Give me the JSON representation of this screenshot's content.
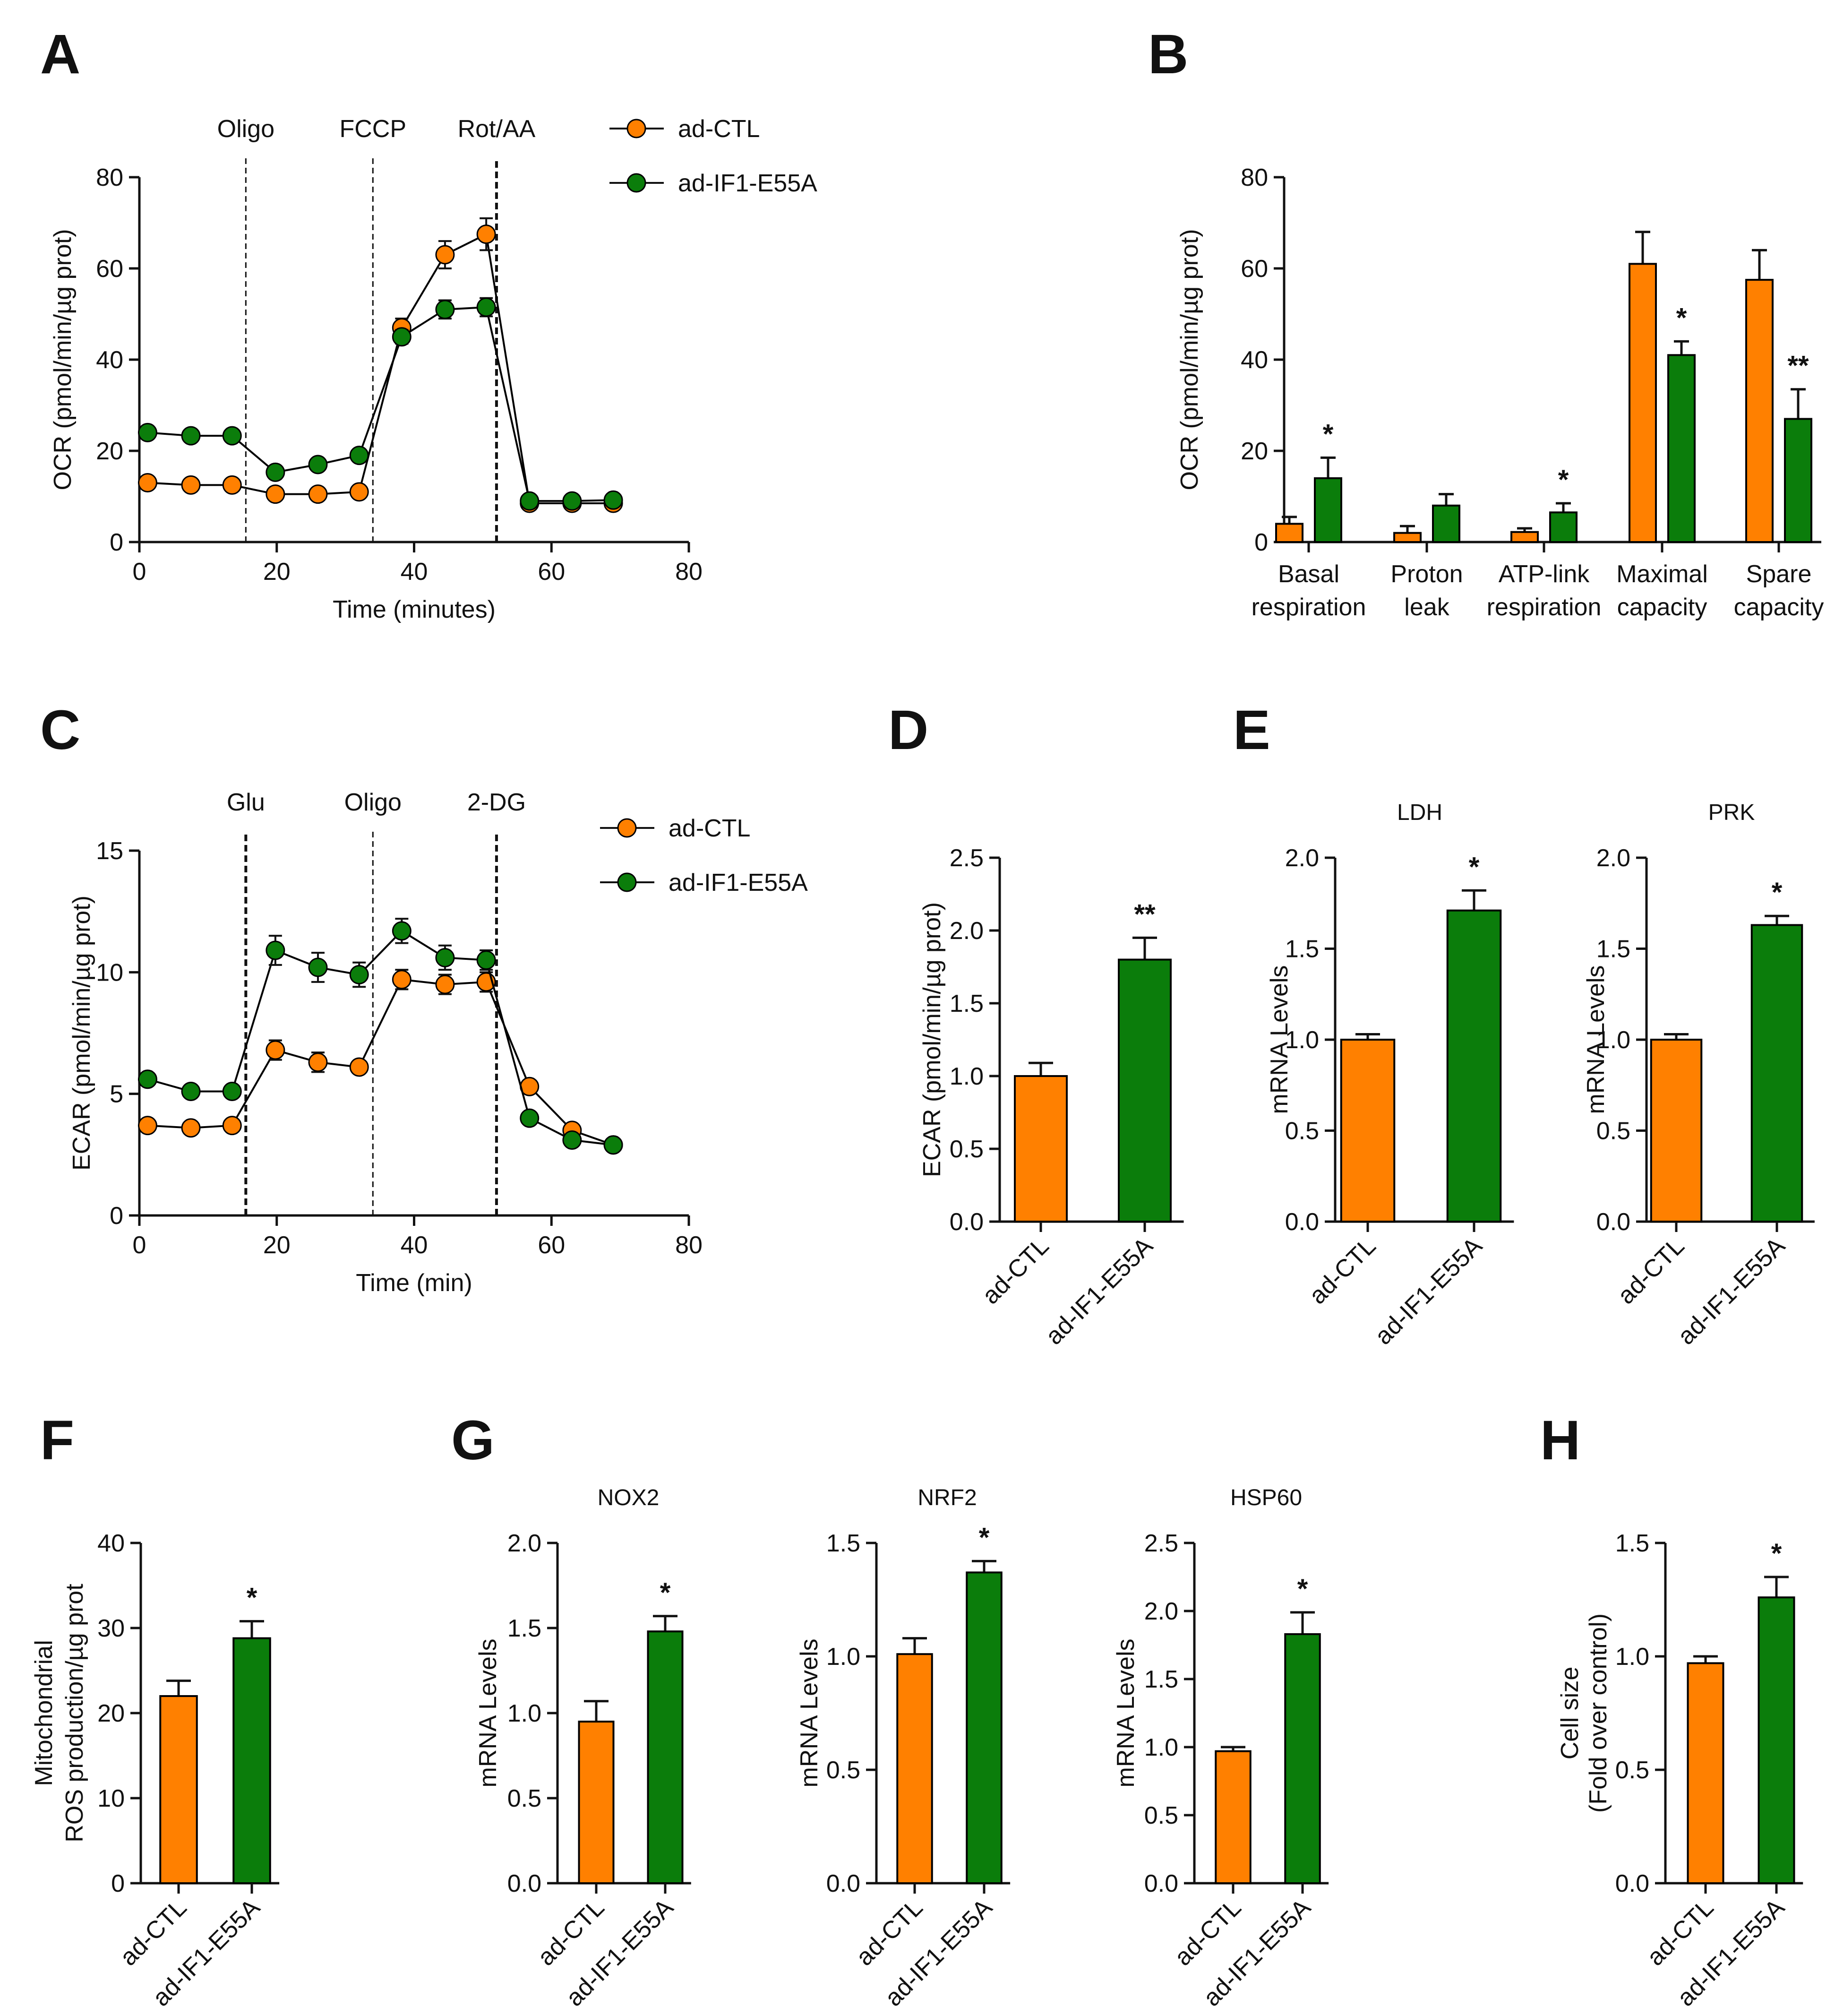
{
  "colors": {
    "ctl": "#ff8000",
    "e55a": "#0b7d0b",
    "axis": "#111111"
  },
  "panels": [
    {
      "id": "A",
      "type": "line",
      "letter": "A",
      "xlabel": "Time (minutes)",
      "ylabel": "OCR (pmol/min/µg prot)",
      "xlim": [
        0,
        80
      ],
      "ylim": [
        0,
        80
      ],
      "xticks": [
        "0",
        "20",
        "40",
        "60",
        "80"
      ],
      "xtickvals": [
        0,
        20,
        40,
        60,
        80
      ],
      "yticks": [
        "0",
        "20",
        "40",
        "60",
        "80"
      ],
      "ytickvals": [
        0,
        20,
        40,
        60,
        80
      ],
      "events": [
        {
          "label": "Oligo",
          "x": 15.5,
          "bold": false
        },
        {
          "label": "FCCP",
          "x": 34,
          "bold": false
        },
        {
          "label": "Rot/AA",
          "x": 52,
          "bold": true
        }
      ],
      "legend": [
        "ad-CTL",
        "ad-IF1-E55A"
      ],
      "series": [
        {
          "name": "ad-CTL",
          "x": [
            1.2,
            7.5,
            13.5,
            19.8,
            26,
            32,
            38.2,
            44.5,
            50.5,
            56.8,
            63,
            69
          ],
          "y": [
            13,
            12.5,
            12.5,
            10.5,
            10.5,
            11,
            47,
            63,
            67.5,
            8.5,
            8.5,
            8.5
          ],
          "err": [
            1,
            1,
            1,
            1,
            1,
            1,
            2,
            3,
            3.5,
            1,
            1,
            1
          ]
        },
        {
          "name": "ad-IF1-E55A",
          "x": [
            1.2,
            7.5,
            13.5,
            19.8,
            26,
            32,
            38.2,
            44.5,
            50.5,
            56.8,
            63,
            69
          ],
          "y": [
            24,
            23.3,
            23.3,
            15.3,
            17,
            19,
            45,
            51,
            51.5,
            9,
            9,
            9.2
          ],
          "err": [
            1,
            1,
            1,
            1,
            1,
            1,
            1.5,
            2,
            2,
            1,
            1,
            1
          ]
        }
      ]
    },
    {
      "id": "B",
      "type": "bar",
      "letter": "B",
      "ylabel": "OCR (pmol/min/µg prot)",
      "ylim": [
        0,
        80
      ],
      "yticks": [
        "0",
        "20",
        "40",
        "60",
        "80"
      ],
      "ytickvals": [
        0,
        20,
        40,
        60,
        80
      ],
      "categories": [
        {
          "l1": "Basal",
          "l2": "respiration"
        },
        {
          "l1": "Proton",
          "l2": "leak"
        },
        {
          "l1": "ATP-link",
          "l2": "respiration"
        },
        {
          "l1": "Maximal",
          "l2": "capacity"
        },
        {
          "l1": "Spare",
          "l2": "capacity"
        }
      ],
      "series": [
        {
          "name": "ad-CTL",
          "values": [
            4,
            2,
            2.2,
            61,
            57.5
          ],
          "err": [
            1.5,
            1.5,
            0.8,
            7,
            6.5
          ]
        },
        {
          "name": "ad-IF1-E55A",
          "values": [
            14,
            8,
            6.5,
            41,
            27
          ],
          "err": [
            4.5,
            2.5,
            2,
            3,
            6.5
          ]
        }
      ],
      "stars": [
        "*",
        "",
        "*",
        "*",
        "**"
      ]
    },
    {
      "id": "C",
      "type": "line",
      "letter": "C",
      "xlabel": "Time (min)",
      "ylabel": "ECAR (pmol/min/µg prot)",
      "xlim": [
        0,
        80
      ],
      "ylim": [
        0,
        15
      ],
      "xticks": [
        "0",
        "20",
        "40",
        "60",
        "80"
      ],
      "xtickvals": [
        0,
        20,
        40,
        60,
        80
      ],
      "yticks": [
        "0",
        "5",
        "10",
        "15"
      ],
      "ytickvals": [
        0,
        5,
        10,
        15
      ],
      "events": [
        {
          "label": "Glu",
          "x": 15.5,
          "bold": true
        },
        {
          "label": "Oligo",
          "x": 34,
          "bold": false
        },
        {
          "label": "2-DG",
          "x": 52,
          "bold": true
        }
      ],
      "legend": [
        "ad-CTL",
        "ad-IF1-E55A"
      ],
      "series": [
        {
          "name": "ad-CTL",
          "x": [
            1.2,
            7.5,
            13.5,
            19.8,
            26,
            32,
            38.2,
            44.5,
            50.5,
            56.8,
            63,
            69
          ],
          "y": [
            3.7,
            3.6,
            3.7,
            6.8,
            6.3,
            6.1,
            9.7,
            9.5,
            9.6,
            5.3,
            3.5,
            2.9
          ],
          "err": [
            0.2,
            0.2,
            0.2,
            0.4,
            0.4,
            0.2,
            0.4,
            0.4,
            0.4,
            0.2,
            0.2,
            0.1
          ]
        },
        {
          "name": "ad-IF1-E55A",
          "x": [
            1.2,
            7.5,
            13.5,
            19.8,
            26,
            32,
            38.2,
            44.5,
            50.5,
            56.8,
            63,
            69
          ],
          "y": [
            5.6,
            5.1,
            5.1,
            10.9,
            10.2,
            9.9,
            11.7,
            10.6,
            10.5,
            4.0,
            3.1,
            2.9
          ],
          "err": [
            0.2,
            0.2,
            0.2,
            0.6,
            0.6,
            0.5,
            0.5,
            0.5,
            0.4,
            0.2,
            0.2,
            0.1
          ]
        }
      ]
    },
    {
      "id": "D",
      "type": "bar2",
      "letter": "D",
      "title": "",
      "ylabel": "ECAR (pmol/min/µg prot)",
      "ylim": [
        0,
        2.5
      ],
      "yticks": [
        "0.0",
        "0.5",
        "1.0",
        "1.5",
        "2.0",
        "2.5"
      ],
      "ytickvals": [
        0,
        0.5,
        1,
        1.5,
        2,
        2.5
      ],
      "categories": [
        "ad-CTL",
        "ad-IF1-E55A"
      ],
      "values": [
        1.0,
        1.8
      ],
      "err": [
        0.09,
        0.15
      ],
      "star": "**"
    },
    {
      "id": "E1",
      "type": "bar2",
      "letter": "E",
      "title": "LDH",
      "ylabel": "mRNA Levels",
      "ylim": [
        0,
        2.0
      ],
      "yticks": [
        "0.0",
        "0.5",
        "1.0",
        "1.5",
        "2.0"
      ],
      "ytickvals": [
        0,
        0.5,
        1,
        1.5,
        2
      ],
      "categories": [
        "ad-CTL",
        "ad-IF1-E55A"
      ],
      "values": [
        1.0,
        1.71
      ],
      "err": [
        0.03,
        0.11
      ],
      "star": "*"
    },
    {
      "id": "E2",
      "type": "bar2",
      "letter": "",
      "title": "PRK",
      "ylabel": "mRNA Levels",
      "ylim": [
        0,
        2.0
      ],
      "yticks": [
        "0.0",
        "0.5",
        "1.0",
        "1.5",
        "2.0"
      ],
      "ytickvals": [
        0,
        0.5,
        1,
        1.5,
        2
      ],
      "categories": [
        "ad-CTL",
        "ad-IF1-E55A"
      ],
      "values": [
        1.0,
        1.63
      ],
      "err": [
        0.03,
        0.05
      ],
      "star": "*"
    },
    {
      "id": "F",
      "type": "bar2",
      "letter": "F",
      "title": "",
      "ylabel": "Mitochondrial",
      "ylabel2": "ROS production/µg prot",
      "ylim": [
        0,
        40
      ],
      "yticks": [
        "0",
        "10",
        "20",
        "30",
        "40"
      ],
      "ytickvals": [
        0,
        10,
        20,
        30,
        40
      ],
      "categories": [
        "ad-CTL",
        "ad-IF1-E55A"
      ],
      "values": [
        22,
        28.8
      ],
      "err": [
        1.8,
        2.0
      ],
      "star": "*"
    },
    {
      "id": "G1",
      "type": "bar2",
      "letter": "G",
      "title": "NOX2",
      "ylabel": "mRNA Levels",
      "ylim": [
        0,
        2.0
      ],
      "yticks": [
        "0.0",
        "0.5",
        "1.0",
        "1.5",
        "2.0"
      ],
      "ytickvals": [
        0,
        0.5,
        1,
        1.5,
        2
      ],
      "categories": [
        "ad-CTL",
        "ad-IF1-E55A"
      ],
      "values": [
        0.95,
        1.48
      ],
      "err": [
        0.12,
        0.09
      ],
      "star": "*"
    },
    {
      "id": "G2",
      "type": "bar2",
      "letter": "",
      "title": "NRF2",
      "ylabel": "mRNA Levels",
      "ylim": [
        0,
        1.5
      ],
      "yticks": [
        "0.0",
        "0.5",
        "1.0",
        "1.5"
      ],
      "ytickvals": [
        0,
        0.5,
        1,
        1.5
      ],
      "categories": [
        "ad-CTL",
        "ad-IF1-E55A"
      ],
      "values": [
        1.01,
        1.37
      ],
      "err": [
        0.07,
        0.05
      ],
      "star": "*"
    },
    {
      "id": "G3",
      "type": "bar2",
      "letter": "",
      "title": "HSP60",
      "ylabel": "mRNA Levels",
      "ylim": [
        0,
        2.5
      ],
      "yticks": [
        "0.0",
        "0.5",
        "1.0",
        "1.5",
        "2.0",
        "2.5"
      ],
      "ytickvals": [
        0,
        0.5,
        1,
        1.5,
        2,
        2.5
      ],
      "categories": [
        "ad-CTL",
        "ad-IF1-E55A"
      ],
      "values": [
        0.97,
        1.83
      ],
      "err": [
        0.03,
        0.16
      ],
      "star": "*"
    },
    {
      "id": "H",
      "type": "bar2",
      "letter": "H",
      "title": "",
      "ylabel": "Cell size",
      "ylabel2": "(Fold over control)",
      "ylim": [
        0,
        1.5
      ],
      "yticks": [
        "0.0",
        "0.5",
        "1.0",
        "1.5"
      ],
      "ytickvals": [
        0,
        0.5,
        1,
        1.5
      ],
      "categories": [
        "ad-CTL",
        "ad-IF1-E55A"
      ],
      "values": [
        0.97,
        1.26
      ],
      "err": [
        0.03,
        0.09
      ],
      "star": "*"
    }
  ],
  "chart_data": [
    {
      "type": "line",
      "panel": "A",
      "title": "",
      "xlabel": "Time (minutes)",
      "ylabel": "OCR (pmol/min/µg prot)",
      "xlim": [
        0,
        80
      ],
      "ylim": [
        0,
        80
      ],
      "series": [
        {
          "name": "ad-CTL",
          "x": [
            1.2,
            7.5,
            13.5,
            19.8,
            26,
            32,
            38.2,
            44.5,
            50.5,
            56.8,
            63,
            69
          ],
          "y": [
            13,
            12.5,
            12.5,
            10.5,
            10.5,
            11,
            47,
            63,
            67.5,
            8.5,
            8.5,
            8.5
          ]
        },
        {
          "name": "ad-IF1-E55A",
          "x": [
            1.2,
            7.5,
            13.5,
            19.8,
            26,
            32,
            38.2,
            44.5,
            50.5,
            56.8,
            63,
            69
          ],
          "y": [
            24,
            23.3,
            23.3,
            15.3,
            17,
            19,
            45,
            51,
            51.5,
            9,
            9,
            9.2
          ]
        }
      ],
      "annotations": [
        "Oligo",
        "FCCP",
        "Rot/AA"
      ]
    },
    {
      "type": "bar",
      "panel": "B",
      "ylabel": "OCR (pmol/min/µg prot)",
      "ylim": [
        0,
        80
      ],
      "categories": [
        "Basal respiration",
        "Proton leak",
        "ATP-link respiration",
        "Maximal capacity",
        "Spare capacity"
      ],
      "series": [
        {
          "name": "ad-CTL",
          "values": [
            4,
            2,
            2.2,
            61,
            57.5
          ]
        },
        {
          "name": "ad-IF1-E55A",
          "values": [
            14,
            8,
            6.5,
            41,
            27
          ]
        }
      ]
    },
    {
      "type": "line",
      "panel": "C",
      "xlabel": "Time (min)",
      "ylabel": "ECAR (pmol/min/µg prot)",
      "xlim": [
        0,
        80
      ],
      "ylim": [
        0,
        15
      ],
      "series": [
        {
          "name": "ad-CTL",
          "x": [
            1.2,
            7.5,
            13.5,
            19.8,
            26,
            32,
            38.2,
            44.5,
            50.5,
            56.8,
            63,
            69
          ],
          "y": [
            3.7,
            3.6,
            3.7,
            6.8,
            6.3,
            6.1,
            9.7,
            9.5,
            9.6,
            5.3,
            3.5,
            2.9
          ]
        },
        {
          "name": "ad-IF1-E55A",
          "x": [
            1.2,
            7.5,
            13.5,
            19.8,
            26,
            32,
            38.2,
            44.5,
            50.5,
            56.8,
            63,
            69
          ],
          "y": [
            5.6,
            5.1,
            5.1,
            10.9,
            10.2,
            9.9,
            11.7,
            10.6,
            10.5,
            4.0,
            3.1,
            2.9
          ]
        }
      ],
      "annotations": [
        "Glu",
        "Oligo",
        "2-DG"
      ]
    },
    {
      "type": "bar",
      "panel": "D",
      "ylabel": "ECAR (pmol/min/µg prot)",
      "ylim": [
        0,
        2.5
      ],
      "categories": [
        "ad-CTL",
        "ad-IF1-E55A"
      ],
      "values": [
        1.0,
        1.8
      ]
    },
    {
      "type": "bar",
      "panel": "E",
      "title": "LDH",
      "ylabel": "mRNA Levels",
      "ylim": [
        0,
        2.0
      ],
      "categories": [
        "ad-CTL",
        "ad-IF1-E55A"
      ],
      "values": [
        1.0,
        1.71
      ]
    },
    {
      "type": "bar",
      "panel": "E",
      "title": "PRK",
      "ylabel": "mRNA Levels",
      "ylim": [
        0,
        2.0
      ],
      "categories": [
        "ad-CTL",
        "ad-IF1-E55A"
      ],
      "values": [
        1.0,
        1.63
      ]
    },
    {
      "type": "bar",
      "panel": "F",
      "ylabel": "Mitochondrial ROS production/µg prot",
      "ylim": [
        0,
        40
      ],
      "categories": [
        "ad-CTL",
        "ad-IF1-E55A"
      ],
      "values": [
        22,
        28.8
      ]
    },
    {
      "type": "bar",
      "panel": "G",
      "title": "NOX2",
      "ylabel": "mRNA Levels",
      "ylim": [
        0,
        2.0
      ],
      "categories": [
        "ad-CTL",
        "ad-IF1-E55A"
      ],
      "values": [
        0.95,
        1.48
      ]
    },
    {
      "type": "bar",
      "panel": "G",
      "title": "NRF2",
      "ylabel": "mRNA Levels",
      "ylim": [
        0,
        1.5
      ],
      "categories": [
        "ad-CTL",
        "ad-IF1-E55A"
      ],
      "values": [
        1.01,
        1.37
      ]
    },
    {
      "type": "bar",
      "panel": "G",
      "title": "HSP60",
      "ylabel": "mRNA Levels",
      "ylim": [
        0,
        2.5
      ],
      "categories": [
        "ad-CTL",
        "ad-IF1-E55A"
      ],
      "values": [
        0.97,
        1.83
      ]
    },
    {
      "type": "bar",
      "panel": "H",
      "ylabel": "Cell size (Fold over control)",
      "ylim": [
        0,
        1.5
      ],
      "categories": [
        "ad-CTL",
        "ad-IF1-E55A"
      ],
      "values": [
        0.97,
        1.26
      ]
    }
  ]
}
